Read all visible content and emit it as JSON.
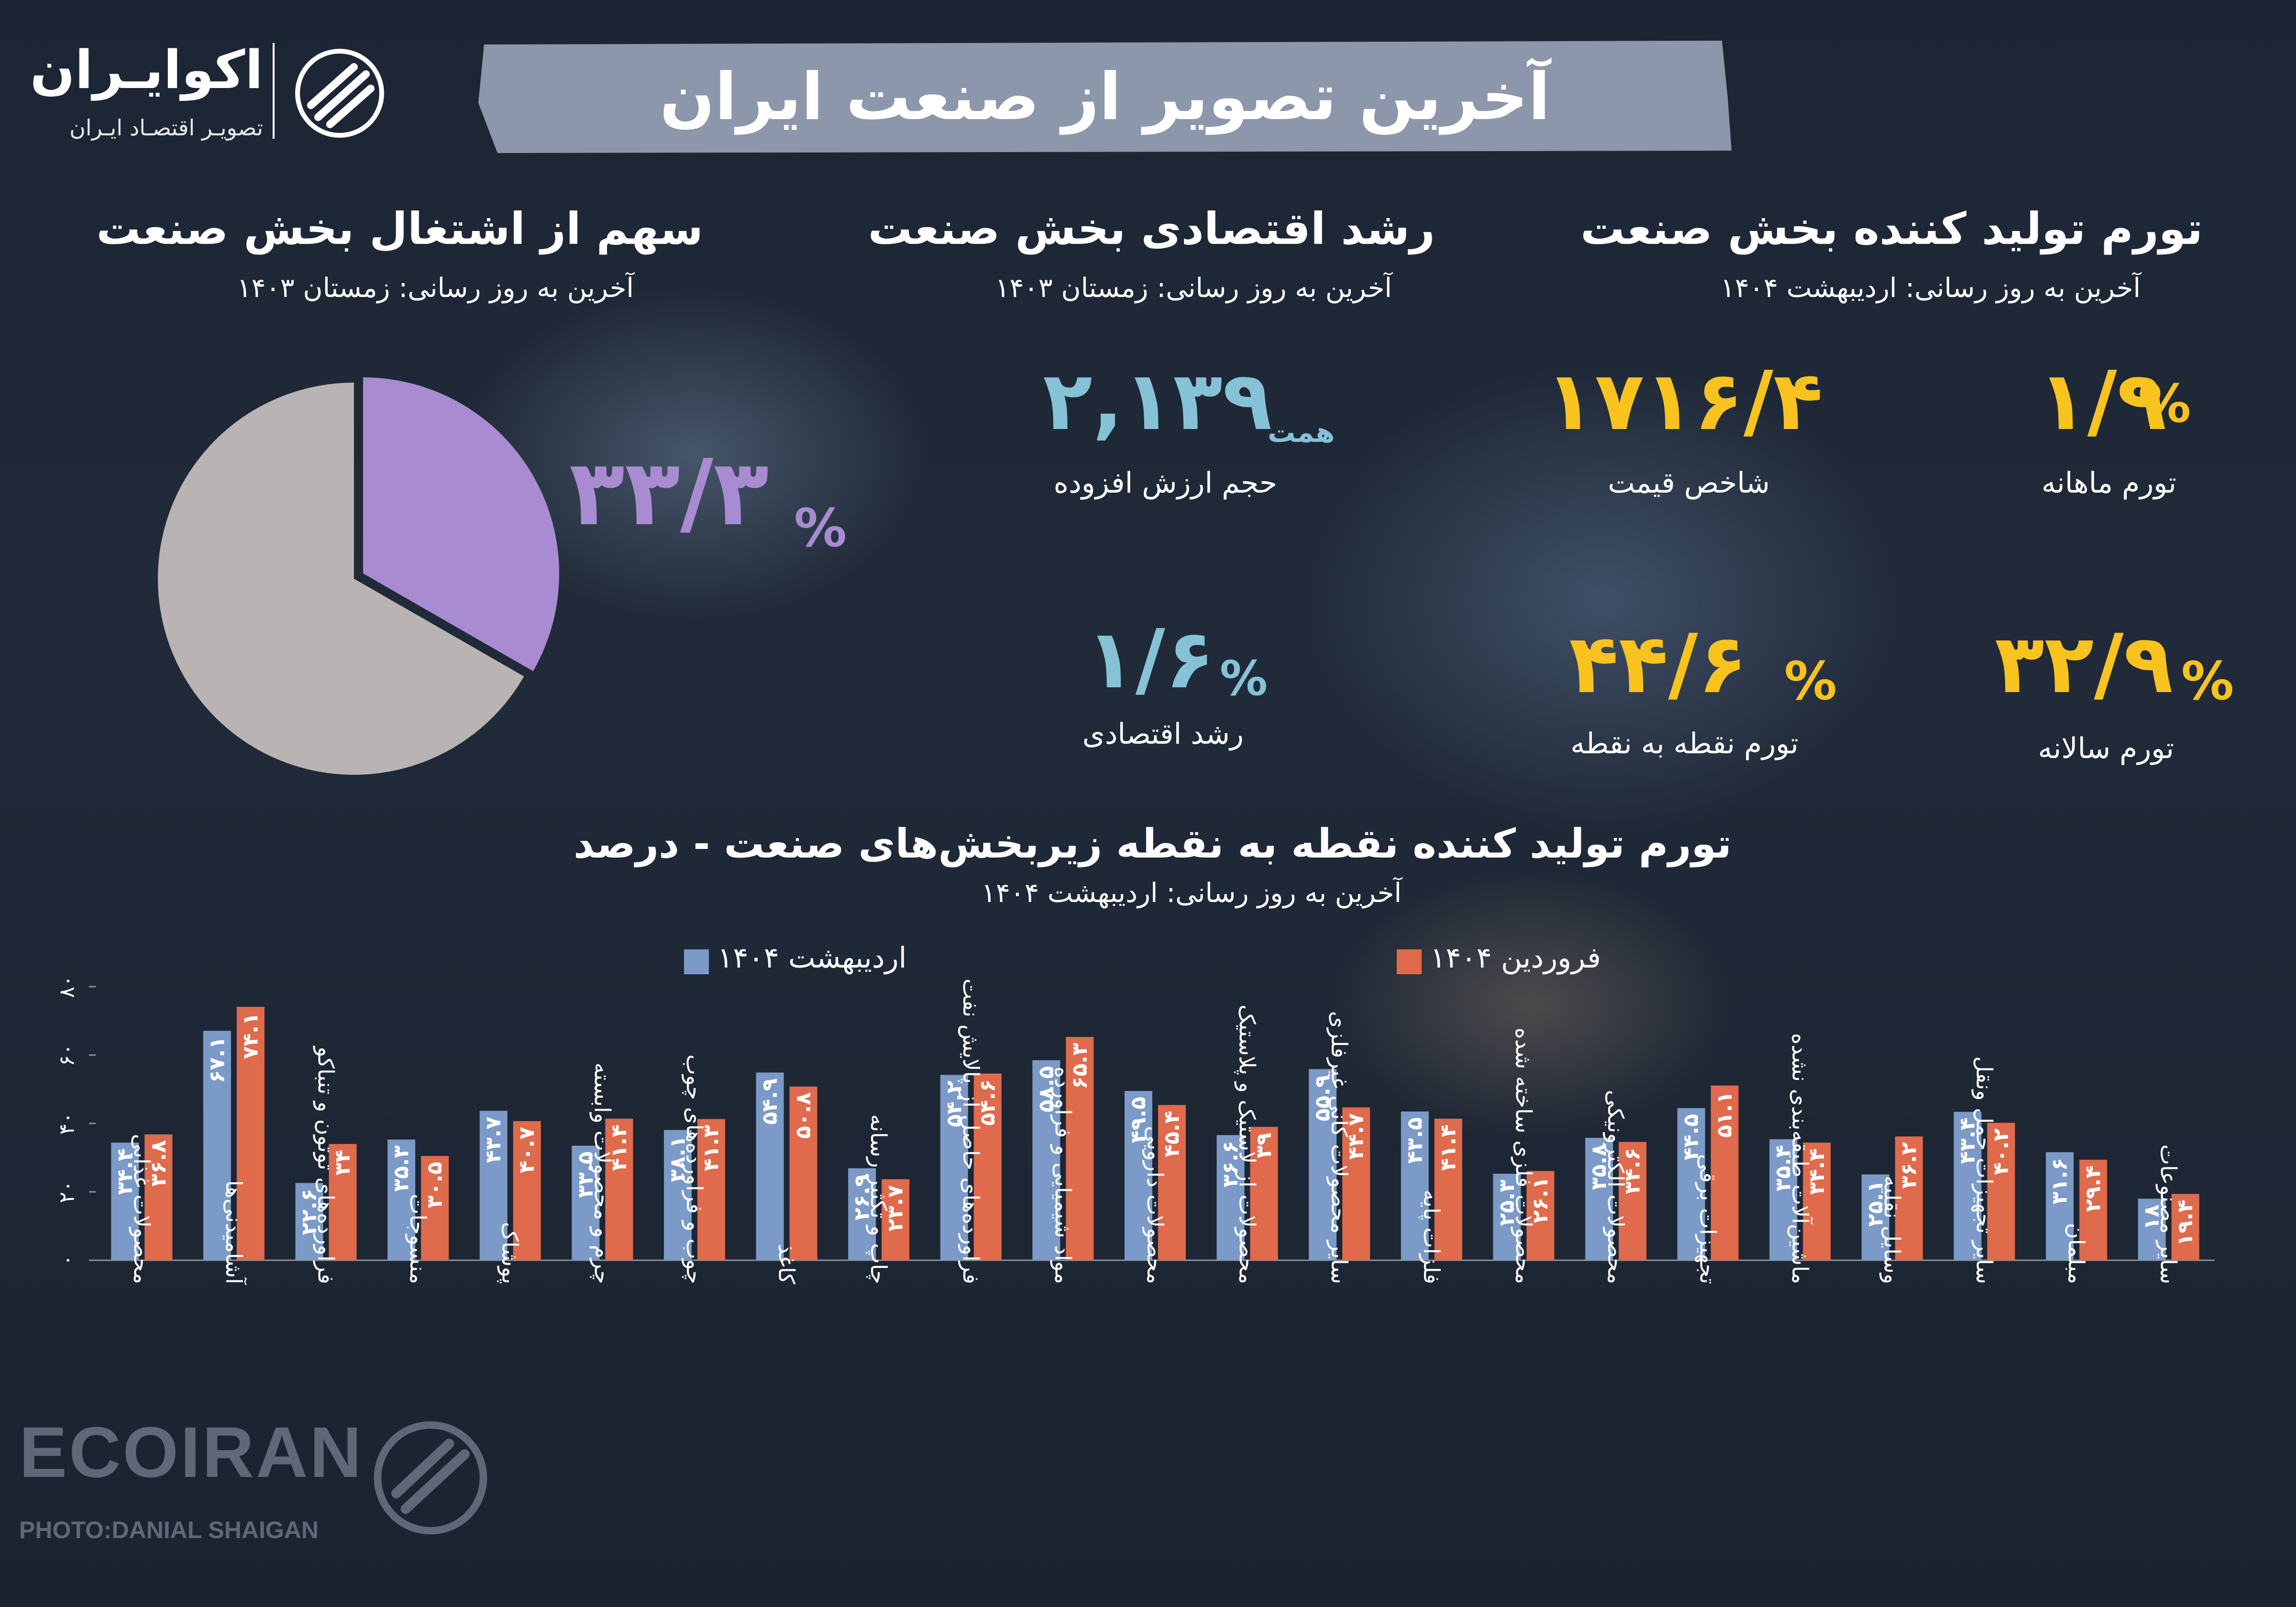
{
  "logo": {
    "name": "اکوایـران",
    "tagline": "تصویـر اقتصـاد ایـران",
    "icon": "ecoiran-logo-icon"
  },
  "title": "آخرین تصویر از صنعت ایران",
  "colors": {
    "yellow": "#f9c31f",
    "blue": "#86c2d6",
    "purple": "#a98bd2",
    "pie_rest": "#b9b3b3",
    "bar_ordibehesht": "#7b9ac7",
    "bar_farvardin": "#e06a4c"
  },
  "inflation_section": {
    "title": "تورم تولید کننده بخش صنعت",
    "subtitle": "آخرین به روز رسانی: اردیبهشت ۱۴۰۴",
    "monthly": {
      "value": "۱/۹",
      "pct": "%",
      "label": "تورم ماهانه"
    },
    "price_index": {
      "value": "۱۷۱۶/۴",
      "label": "شاخص قیمت"
    },
    "annual": {
      "value": "۳۲/۹",
      "pct": "%",
      "label": "تورم سالانه"
    },
    "point": {
      "value": "۴۴/۶",
      "pct": "%",
      "label": "تورم نقطه به نقطه"
    }
  },
  "growth_section": {
    "title": "رشد اقتصادی بخش صنعت",
    "subtitle": "آخرین به روز رسانی: زمستان ۱۴۰۳",
    "value_added": {
      "value": "۲,۱۳۹",
      "unit": "همت",
      "label": "حجم ارزش افزوده"
    },
    "growth": {
      "value": "۱/۶",
      "pct": "%",
      "label": "رشد اقتصادی"
    }
  },
  "employment_section": {
    "title": "سهم از اشتغال بخش صنعت",
    "subtitle": "آخرین به روز رسانی: زمستان ۱۴۰۳",
    "value": "۳۳/۳",
    "pct": "%",
    "share": 33.3
  },
  "chart_data": {
    "type": "bar",
    "title": "تورم تولید کننده نقطه به نقطه زیربخش‌های صنعت - درصد",
    "subtitle": "آخرین به روز رسانی: اردیبهشت ۱۴۰۴",
    "ylim": [
      0,
      80
    ],
    "yticks": [
      0,
      20,
      40,
      60,
      80
    ],
    "ytick_labels": [
      "۰",
      "۲۰",
      "۴۰",
      "۶۰",
      "۸۰"
    ],
    "categories": [
      "محصولات غذایی",
      "آشامیدنی‌ها",
      "فراورده‌های توتون و تنباکو",
      "منسوجات",
      "پوشاک",
      "چرم و محصولات وابسته",
      "چوب و فراورده‌های چوب",
      "کاغذ",
      "چاپ و تکثیر رسانه",
      "فراورده‌های حاصل از پالایش نفت",
      "مواد شیمیایی و فراورده",
      "محصولات دارویی",
      "محصولات از لاستیک و پلاستیک",
      "سایر محصولات کانی غیرفلزی",
      "فلزات پایه",
      "محصولات فلزی ساخته شده",
      "محصولات الکترونیکی",
      "تجهیزات برقی",
      "ماشین‌آلات طبقه‌بندی نشده",
      "وسایل نقلیه",
      "سایر تجهیزات حمل ونقل",
      "مبلمان",
      "سایر مصنوعات"
    ],
    "series": [
      {
        "name": "اردیبهشت ۱۴۰۴",
        "values": [
          34.4,
          67.1,
          22.6,
          35.3,
          43.7,
          33.5,
          38.1,
          54.9,
          26.9,
          54.2,
          58.5,
          49.5,
          36.6,
          55.9,
          43.5,
          25.3,
          35.8,
          44.5,
          35.4,
          25.1,
          43.4,
          31.6,
          18
        ],
        "labels": [
          "۳۴.۴",
          "۶۷.۱",
          "۲۲.۶",
          "۳۵.۳",
          "۴۳.۷",
          "۳۳.۵",
          "۳۸.۱",
          "۵۴.۹",
          "۲۶.۹",
          "۵۴.۲",
          "۵۸.۵",
          "۴۹.۵",
          "۳۶.۶",
          "۵۵.۹",
          "۴۳.۵",
          "۲۵.۳",
          "۳۵.۸",
          "۴۴.۵",
          "۳۵.۴",
          "۲۵.۱",
          "۴۳.۴",
          "۳۱.۶",
          "۱۸"
        ]
      },
      {
        "name": "فروردین ۱۴۰۴",
        "values": [
          36.8,
          74.1,
          34,
          30.5,
          40.7,
          41.4,
          41.3,
          50.8,
          23.7,
          54.6,
          65.3,
          45.4,
          39,
          44.7,
          41.4,
          26.1,
          34.6,
          51.1,
          34.4,
          36.2,
          40.2,
          29.4,
          19.4
        ],
        "labels": [
          "۳۶.۸",
          "۷۴.۱",
          "۳۴",
          "۳۰.۵",
          "۴۰.۷",
          "۴۱.۴",
          "۴۱.۳",
          "۵۰.۸",
          "۲۳.۷",
          "۵۴.۶",
          "۶۵.۳",
          "۴۵.۴",
          "۳۹",
          "۴۴.۷",
          "۴۱.۴",
          "۲۶.۱",
          "۳۴.۶",
          "۵۱.۱",
          "۳۴.۴",
          "۳۶.۲",
          "۴۰.۲",
          "۲۹.۴",
          "۱۹.۴"
        ]
      }
    ]
  },
  "watermark": {
    "text": "ECOIRAN",
    "photo_credit": "PHOTO:DANIAL SHAIGAN"
  }
}
